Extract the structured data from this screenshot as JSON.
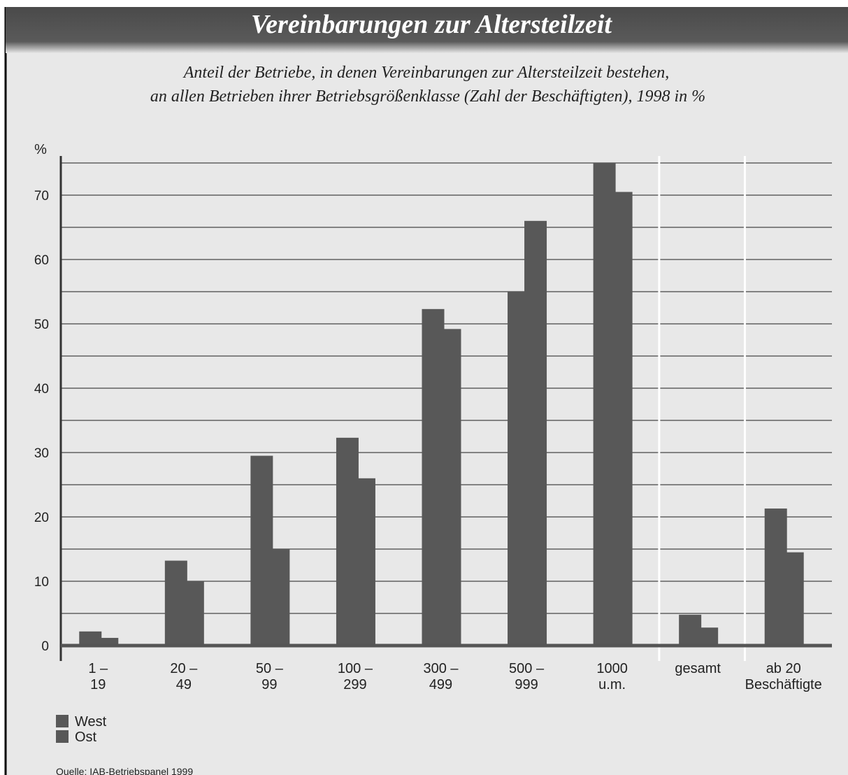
{
  "chart_data": {
    "type": "bar",
    "title": "Vereinbarungen zur Altersteilzeit",
    "subtitle": [
      "Anteil der Betriebe, in denen Vereinbarungen zur Altersteilzeit bestehen,",
      "an allen Betrieben ihrer Betriebsgrößenklasse (Zahl der Beschäftigten), 1998 in %"
    ],
    "y_label": "%",
    "categories": [
      [
        "1 –",
        "19"
      ],
      [
        "20 –",
        "49"
      ],
      [
        "50 –",
        "99"
      ],
      [
        "100 –",
        "299"
      ],
      [
        "300 –",
        "499"
      ],
      [
        "500 –",
        "999"
      ],
      [
        "1000",
        "u.m."
      ],
      [
        "gesamt"
      ],
      [
        "ab 20",
        "Beschäftigte"
      ]
    ],
    "series": [
      {
        "name": "West",
        "color": "#585858",
        "values": [
          2.2,
          13.2,
          29.5,
          32.3,
          52.3,
          55,
          75,
          4.8,
          21.3
        ]
      },
      {
        "name": "Ost",
        "color": "#585858",
        "values": [
          1.2,
          10,
          15,
          26,
          49.2,
          66,
          70.5,
          2.8,
          14.5
        ]
      }
    ],
    "ylim": [
      0,
      75
    ],
    "yticks": [
      0,
      10,
      20,
      30,
      40,
      50,
      60,
      70
    ],
    "minor_yticks": [
      5,
      15,
      25,
      35,
      45,
      55,
      65,
      75
    ],
    "grid": true,
    "legend": "bottom-left",
    "source": "Quelle: IAB-Betriebspanel 1999"
  }
}
